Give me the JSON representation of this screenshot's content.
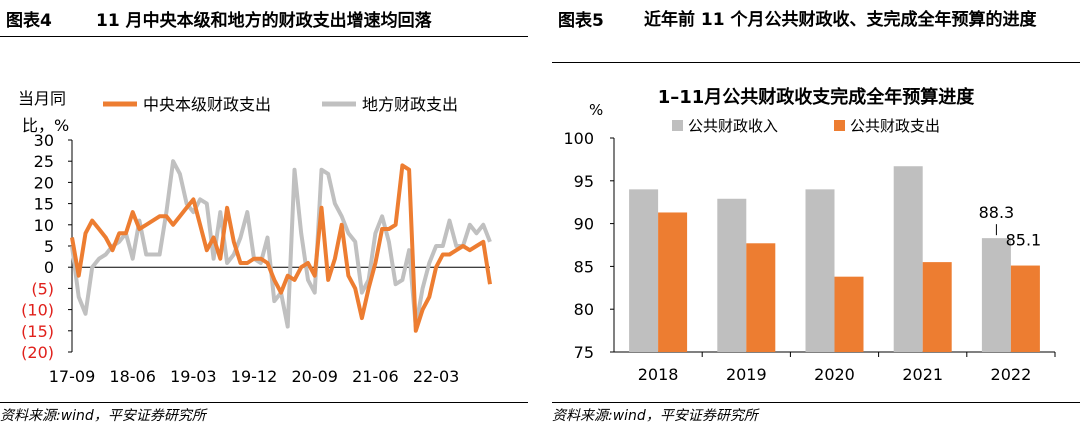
{
  "left": {
    "fig_id": "图表4",
    "fig_title": "11 月中央本级和地方的财政支出增速均回落",
    "source": "资料来源:wind，平安证券研究所",
    "chart_data": {
      "type": "line",
      "ylabel_line1": "当月同",
      "ylabel_line2": "比，%",
      "ylim": [
        -20,
        30
      ],
      "yticks": [
        30,
        25,
        20,
        15,
        10,
        5,
        0,
        -5,
        -10,
        -15,
        -20
      ],
      "ytick_labels": [
        "30",
        "25",
        "20",
        "15",
        "10",
        "5",
        "0",
        "(5)",
        "(10)",
        "(15)",
        "(20)"
      ],
      "negative_tick_color": "#e0201b",
      "xtick_labels": [
        "17-09",
        "18-06",
        "19-03",
        "19-12",
        "20-09",
        "21-06",
        "22-03"
      ],
      "xtick_month_index": [
        0,
        9,
        18,
        27,
        36,
        45,
        54
      ],
      "n_months": 63,
      "legend_position": "top",
      "series": [
        {
          "name": "中央本级财政支出",
          "color": "#ed7d31",
          "values": [
            7,
            -2,
            8,
            11,
            9,
            7,
            4,
            8,
            8,
            13,
            9,
            10,
            11,
            12,
            12,
            10,
            12,
            14,
            16,
            10,
            4,
            7,
            2,
            14,
            6,
            1,
            1,
            2,
            2,
            1,
            -3,
            -6,
            -2,
            -3,
            0,
            1,
            -2,
            14,
            -3,
            2,
            10,
            -2,
            -5,
            -12,
            -5,
            1,
            9,
            9,
            10,
            24,
            23,
            -15,
            -10,
            -7,
            0,
            3,
            3,
            4,
            5,
            4,
            5,
            6,
            -4
          ],
          "label_points": []
        },
        {
          "name": "地方财政支出",
          "color": "#c0c0c0",
          "values": [
            5,
            -7,
            -11,
            0,
            2,
            3,
            5,
            6,
            8,
            2,
            11,
            3,
            3,
            3,
            13,
            25,
            22,
            15,
            13,
            16,
            15,
            2,
            13,
            1,
            3,
            7,
            13,
            2,
            1,
            7,
            -8,
            -6,
            -14,
            23,
            8,
            -3,
            -6,
            23,
            22,
            15,
            12,
            8,
            6,
            -6,
            -3,
            8,
            12,
            6,
            -4,
            -3,
            4,
            -14,
            -5,
            1,
            5,
            5,
            11,
            5,
            5,
            10,
            8,
            10,
            6
          ],
          "label_points": []
        }
      ]
    }
  },
  "right": {
    "fig_id": "图表5",
    "fig_title": "近年前 11 个月公共财政收、支完成全年预算的进度",
    "chart_data": {
      "type": "bar",
      "title": "1–11月公共财政收支完成全年预算进度",
      "ylabel": "%",
      "ylim": [
        75,
        100
      ],
      "yticks": [
        100,
        95,
        90,
        85,
        80,
        75
      ],
      "ytick_labels": [
        "100",
        "95",
        "90",
        "85",
        "80",
        "75"
      ],
      "categories": [
        "2018",
        "2019",
        "2020",
        "2021",
        "2022"
      ],
      "legend_position": "top",
      "series": [
        {
          "name": "公共财政收入",
          "color": "#bfbfbf",
          "values": [
            94.0,
            92.9,
            94.0,
            96.7,
            88.3
          ]
        },
        {
          "name": "公共财政支出",
          "color": "#ed7d31",
          "values": [
            91.3,
            87.7,
            83.8,
            85.5,
            85.1
          ]
        }
      ],
      "data_labels": [
        {
          "series": 0,
          "category": 4,
          "text": "88.3"
        },
        {
          "series": 1,
          "category": 4,
          "text": "85.1"
        }
      ]
    },
    "source": "资料来源:wind，平安证券研究所"
  }
}
